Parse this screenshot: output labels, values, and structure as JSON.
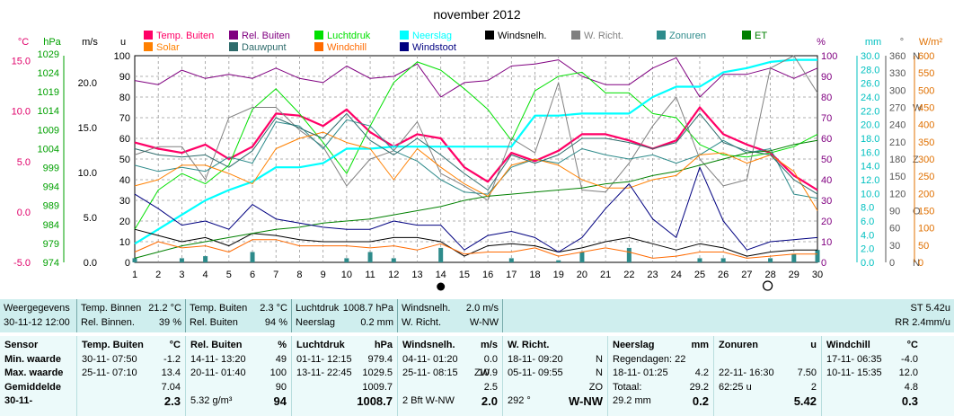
{
  "chart_data": {
    "type": "line",
    "title": "november 2012",
    "x": [
      1,
      2,
      3,
      4,
      5,
      6,
      7,
      8,
      9,
      10,
      11,
      12,
      13,
      14,
      15,
      16,
      17,
      18,
      19,
      20,
      21,
      22,
      23,
      24,
      25,
      26,
      27,
      28,
      29,
      30
    ],
    "x_tick_labels": [
      "1",
      "2",
      "3",
      "4",
      "5",
      "6",
      "7",
      "8",
      "9",
      "10",
      "11",
      "12",
      "13",
      "14",
      "15",
      "16",
      "17",
      "18",
      "19",
      "20",
      "21",
      "22",
      "23",
      "24",
      "25",
      "26",
      "27",
      "28",
      "29",
      "30"
    ],
    "percent_axis": {
      "min": 0,
      "max": 100,
      "ticks": [
        "0",
        "10",
        "20",
        "30",
        "40",
        "50",
        "60",
        "70",
        "80",
        "90",
        "100"
      ]
    },
    "left_axes": [
      {
        "unit": "°C",
        "color": "#e0006a",
        "ticks": [
          "-5.0",
          "0.0",
          "5.0",
          "10.0",
          "15.0"
        ]
      },
      {
        "unit": "hPa",
        "color": "#00a000",
        "ticks": [
          "974",
          "979",
          "984",
          "989",
          "994",
          "999",
          "1004",
          "1009",
          "1014",
          "1019",
          "1024",
          "1029"
        ]
      },
      {
        "unit": "m/s",
        "color": "#000000",
        "ticks": [
          "0.0",
          "5.0",
          "10.0",
          "15.0",
          "20.0"
        ]
      },
      {
        "unit": "u",
        "color": "#000000",
        "ticks": [
          "0",
          "10",
          "20",
          "30",
          "40",
          "50",
          "60",
          "70",
          "80",
          "90",
          "100"
        ]
      }
    ],
    "right_axes": [
      {
        "unit": "%",
        "color": "#800080",
        "ticks": [
          "0",
          "10",
          "20",
          "30",
          "40",
          "50",
          "60",
          "70",
          "80",
          "90",
          "100"
        ]
      },
      {
        "unit": "mm",
        "color": "#00c0c0",
        "ticks": [
          "0.0",
          "2.0",
          "4.0",
          "6.0",
          "8.0",
          "10.0",
          "12.0",
          "14.0",
          "16.0",
          "18.0",
          "20.0",
          "22.0",
          "24.0",
          "26.0",
          "28.0",
          "30.0"
        ]
      },
      {
        "unit": "°",
        "color": "#555555",
        "ticks": [
          "0",
          "30",
          "60",
          "90",
          "120",
          "150",
          "180",
          "210",
          "240",
          "270",
          "300",
          "330",
          "360"
        ],
        "compass": [
          {
            "label": "N",
            "value": 0
          },
          {
            "label": "O",
            "value": 90
          },
          {
            "label": "Z",
            "value": 180
          },
          {
            "label": "W",
            "value": 270
          },
          {
            "label": "N",
            "value": 360
          }
        ]
      },
      {
        "unit": "W/m²",
        "color": "#e07000",
        "ticks": [
          "0",
          "50",
          "100",
          "150",
          "200",
          "250",
          "300",
          "350",
          "400",
          "450",
          "500",
          "550",
          "600"
        ]
      }
    ],
    "grid": true,
    "legend_placement": "top",
    "moon_phases": [
      {
        "x": 14,
        "phase": "new"
      },
      {
        "x": 28,
        "phase": "full"
      }
    ],
    "series": [
      {
        "name": "Temp. Buiten",
        "color": "#ff0066",
        "width": 2.2,
        "values": [
          58,
          55,
          53,
          57,
          50,
          56,
          72,
          71,
          66,
          74,
          63,
          56,
          62,
          60,
          46,
          39,
          53,
          49,
          54,
          62,
          62,
          59,
          55,
          59,
          75,
          62,
          57,
          53,
          42,
          35
        ]
      },
      {
        "name": "Rel. Buiten",
        "color": "#800080",
        "width": 1,
        "values": [
          88,
          86,
          93,
          89,
          91,
          89,
          94,
          89,
          87,
          95,
          89,
          90,
          96,
          80,
          87,
          88,
          95,
          96,
          98,
          90,
          86,
          86,
          94,
          99,
          80,
          91,
          91,
          94,
          89,
          94
        ]
      },
      {
        "name": "Luchtdruk",
        "color": "#00e000",
        "width": 1,
        "values": [
          16,
          35,
          43,
          38,
          47,
          74,
          84,
          72,
          58,
          43,
          66,
          87,
          97,
          93,
          84,
          74,
          59,
          83,
          90,
          92,
          82,
          82,
          72,
          70,
          57,
          52,
          51,
          53,
          56,
          62
        ]
      },
      {
        "name": "Neerslag",
        "color": "#00ffff",
        "width": 2.2,
        "values": [
          9,
          16,
          23,
          30,
          35,
          39,
          46,
          46,
          48,
          55,
          55,
          56,
          56,
          56,
          56,
          56,
          56,
          71,
          71,
          72,
          72,
          72,
          80,
          85,
          85,
          92,
          94,
          97,
          98,
          98
        ]
      },
      {
        "name": "Windsnelh.",
        "color": "#000000",
        "width": 1,
        "values": [
          16,
          13,
          10,
          12,
          8,
          14,
          13,
          11,
          10,
          10,
          10,
          12,
          12,
          10,
          3,
          8,
          9,
          8,
          5,
          7,
          10,
          12,
          9,
          6,
          9,
          7,
          3,
          5,
          6,
          6
        ]
      },
      {
        "name": "W. Richt.",
        "color": "#808080",
        "width": 1,
        "values": [
          52,
          56,
          56,
          40,
          70,
          75,
          75,
          64,
          56,
          37,
          50,
          54,
          68,
          43,
          37,
          30,
          60,
          53,
          87,
          35,
          34,
          48,
          66,
          80,
          50,
          37,
          40,
          94,
          100,
          82
        ]
      },
      {
        "name": "Zonuren",
        "color": "#2e8b8b",
        "width": 1,
        "values": [
          47,
          44,
          46,
          44,
          51,
          48,
          68,
          66,
          55,
          69,
          66,
          54,
          49,
          40,
          34,
          33,
          46,
          50,
          48,
          55,
          52,
          50,
          52,
          48,
          52,
          59,
          53,
          55,
          33,
          31
        ]
      },
      {
        "name": "ET",
        "color": "#008000",
        "width": 1,
        "values": [
          2,
          5,
          8,
          10,
          12,
          14,
          16,
          17,
          19,
          20,
          21,
          23,
          25,
          27,
          30,
          32,
          33,
          34,
          35,
          36,
          38,
          39,
          42,
          44,
          47,
          50,
          53,
          54,
          57,
          59
        ]
      },
      {
        "name": "Solar",
        "color": "#ff8000",
        "width": 1,
        "values": [
          37,
          40,
          47,
          47,
          43,
          38,
          55,
          60,
          63,
          58,
          55,
          40,
          55,
          46,
          38,
          32,
          47,
          50,
          47,
          40,
          36,
          36,
          40,
          42,
          52,
          53,
          48,
          52,
          44,
          25
        ]
      },
      {
        "name": "Dauwpunt",
        "color": "#2e6b6b",
        "width": 1,
        "values": [
          55,
          52,
          51,
          52,
          46,
          54,
          70,
          65,
          60,
          72,
          59,
          52,
          60,
          52,
          43,
          35,
          52,
          48,
          52,
          60,
          60,
          58,
          55,
          58,
          72,
          58,
          54,
          52,
          40,
          33
        ]
      },
      {
        "name": "Windchill",
        "color": "#ff6a00",
        "width": 1,
        "values": [
          5,
          10,
          7,
          8,
          5,
          11,
          11,
          8,
          8,
          8,
          7,
          8,
          6,
          9,
          4,
          5,
          5,
          7,
          3,
          5,
          7,
          5,
          2,
          3,
          5,
          5,
          2,
          3,
          4,
          4
        ]
      },
      {
        "name": "Windstoot",
        "color": "#000080",
        "width": 1,
        "values": [
          33,
          26,
          18,
          20,
          16,
          28,
          21,
          19,
          17,
          16,
          16,
          20,
          18,
          18,
          6,
          13,
          15,
          12,
          5,
          12,
          26,
          38,
          21,
          12,
          46,
          20,
          6,
          10,
          11,
          12
        ]
      }
    ],
    "zonuren_bars": [
      2,
      0,
      2,
      3,
      0,
      5,
      0,
      0,
      0,
      2,
      5,
      2,
      0,
      7,
      0,
      0,
      2,
      0,
      1,
      5,
      0,
      7,
      0,
      0,
      2,
      2,
      0,
      2,
      4,
      6
    ]
  },
  "legend": [
    {
      "label": "Temp. Buiten",
      "color": "#ff0066"
    },
    {
      "label": "Rel. Buiten",
      "color": "#800080"
    },
    {
      "label": "Luchtdruk",
      "color": "#00e000"
    },
    {
      "label": "Neerslag",
      "color": "#00ffff"
    },
    {
      "label": "Windsnelh.",
      "color": "#000000"
    },
    {
      "label": "W. Richt.",
      "color": "#808080"
    },
    {
      "label": "Zonuren",
      "color": "#2e8b8b"
    },
    {
      "label": "ET",
      "color": "#008000"
    },
    {
      "label": "Solar",
      "color": "#ff8000"
    },
    {
      "label": "Dauwpunt",
      "color": "#2e6b6b"
    },
    {
      "label": "Windchill",
      "color": "#ff6a00"
    },
    {
      "label": "Windstoot",
      "color": "#000080"
    }
  ],
  "info": {
    "weergegevens": "Weergegevens",
    "datetime": "30-11-12 12:00",
    "temp_binnen_label": "Temp. Binnen",
    "temp_binnen_value": "21.2 °C",
    "rel_binnen_label": "Rel. Binnen.",
    "rel_binnen_value": "39 %",
    "temp_buiten_label": "Temp. Buiten",
    "temp_buiten_value": "2.3 °C",
    "rel_buiten_label": "Rel. Buiten",
    "rel_buiten_value": "94 %",
    "luchtdruk_label": "Luchtdruk",
    "luchtdruk_value": "1008.7 hPa",
    "neerslag_label": "Neerslag",
    "neerslag_value": "0.2 mm",
    "windsnelh_label": "Windsnelh.",
    "windsnelh_value": "2.0 m/s",
    "wrichtlabel": "W. Richt.",
    "wricht_value": "W-NW",
    "st": "ST 5.42u",
    "rr": "RR 2.4mm/u"
  },
  "stats": {
    "sensor": {
      "title": "Sensor",
      "min": "Min. waarde",
      "max": "Max. waarde",
      "avg": "Gemiddelde",
      "date": "30-11-"
    },
    "temp": {
      "title": "Temp. Buiten",
      "unit": "°C",
      "min_when": "30-11- 07:50",
      "min": "-1.2",
      "max_when": "25-11- 07:10",
      "max": "13.4",
      "avg": "7.04",
      "cur": "2.3"
    },
    "rel": {
      "title": "Rel. Buiten",
      "unit": "%",
      "min_when": "14-11- 13:20",
      "min": "49",
      "max_when": "20-11- 01:40",
      "max": "100",
      "avg": "90",
      "extra": "5.32 g/m³",
      "cur": "94"
    },
    "druk": {
      "title": "Luchtdruk",
      "unit": "hPa",
      "min_when": "01-11- 12:15",
      "min": "979.4",
      "max_when": "13-11- 22:45",
      "max": "1029.5",
      "avg": "1009.7",
      "cur": "1008.7"
    },
    "wind": {
      "title": "Windsnelh.",
      "unit": "m/s",
      "min_when": "04-11- 01:20",
      "min": "0.0",
      "max_when": "25-11- 08:15",
      "max_dir": "ZW",
      "max": "10.9",
      "avg": "2.5",
      "bft": "2 Bft W-NW",
      "cur": "2.0"
    },
    "richt": {
      "title": "W. Richt.",
      "min_when": "18-11- 09:20",
      "min": "N",
      "max_when": "05-11- 09:55",
      "max": "N",
      "avg": "ZO",
      "deg": "292 °",
      "cur": "W-NW"
    },
    "neerslag": {
      "title": "Neerslag",
      "unit": "mm",
      "regendagen": "Regendagen: 22",
      "max_when": "18-11- 01:25",
      "max": "4.2",
      "totaal_label": "Totaal:",
      "totaal": "29.2",
      "extra": "29.2 mm",
      "cur": "0.2"
    },
    "zon": {
      "title": "Zonuren",
      "unit": "u",
      "max_when": "22-11- 16:30",
      "max": "7.50",
      "tot_when": "62:25 u",
      "tot": "2",
      "cur": "5.42"
    },
    "chill": {
      "title": "Windchill",
      "unit": "°C",
      "min_when": "17-11- 06:35",
      "min": "-4.0",
      "max_when": "10-11- 15:35",
      "max": "12.0",
      "avg": "4.8",
      "cur": "0.3"
    }
  }
}
